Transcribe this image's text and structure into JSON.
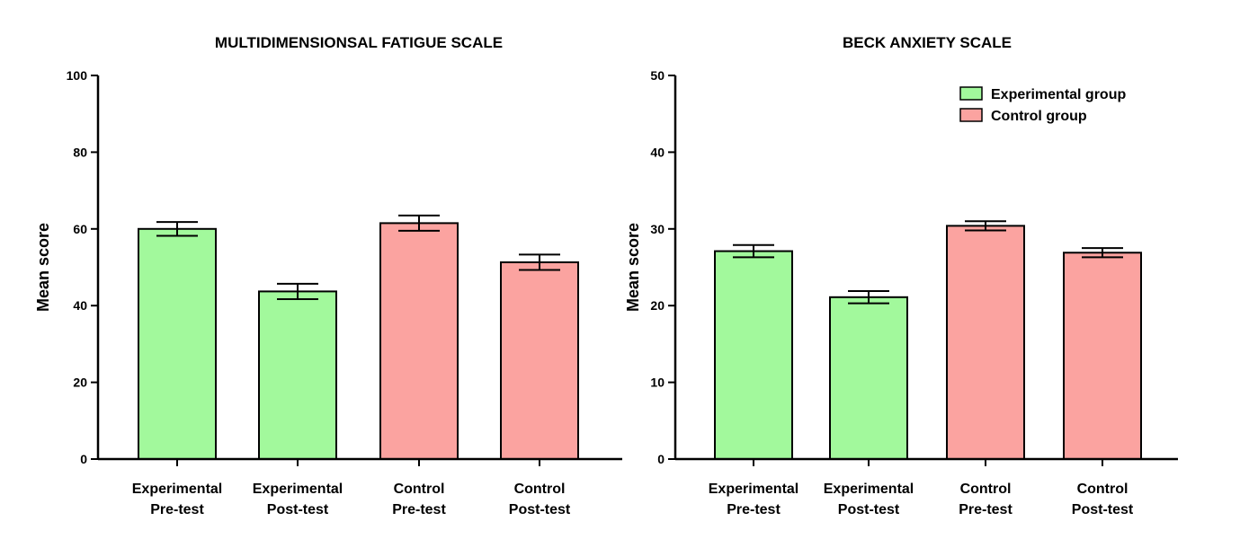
{
  "chart_data": [
    {
      "type": "bar",
      "title": "MULTIDIMENSIONSAL FATIGUE SCALE",
      "xlabel": "",
      "ylabel": "Mean score",
      "ylim": [
        0,
        100
      ],
      "yticks": [
        0,
        20,
        40,
        60,
        80,
        100
      ],
      "categories": [
        [
          "Experimental",
          "Pre-test"
        ],
        [
          "Experimental",
          "Post-test"
        ],
        [
          "Control",
          "Pre-test"
        ],
        [
          "Control",
          "Post-test"
        ]
      ],
      "values": [
        60,
        43.7,
        61.5,
        51.3
      ],
      "errors": [
        1.8,
        2.0,
        2.0,
        2.0
      ],
      "groups": [
        "experimental",
        "experimental",
        "control",
        "control"
      ]
    },
    {
      "type": "bar",
      "title": "BECK ANXIETY SCALE",
      "xlabel": "",
      "ylabel": "Mean score",
      "ylim": [
        0,
        50
      ],
      "yticks": [
        0,
        10,
        20,
        30,
        40,
        50
      ],
      "categories": [
        [
          "Experimental",
          "Pre-test"
        ],
        [
          "Experimental",
          "Post-test"
        ],
        [
          "Control",
          "Pre-test"
        ],
        [
          "Control",
          "Post-test"
        ]
      ],
      "values": [
        27.1,
        21.1,
        30.4,
        26.9
      ],
      "errors": [
        0.8,
        0.8,
        0.6,
        0.6
      ],
      "groups": [
        "experimental",
        "experimental",
        "control",
        "control"
      ]
    }
  ],
  "legend": {
    "position": "top-right",
    "items": [
      {
        "key": "experimental",
        "label": "Experimental group"
      },
      {
        "key": "control",
        "label": "Control group"
      }
    ]
  },
  "colors": {
    "experimental": "#a2f99c",
    "control": "#fba3a0",
    "axis": "#000000"
  }
}
